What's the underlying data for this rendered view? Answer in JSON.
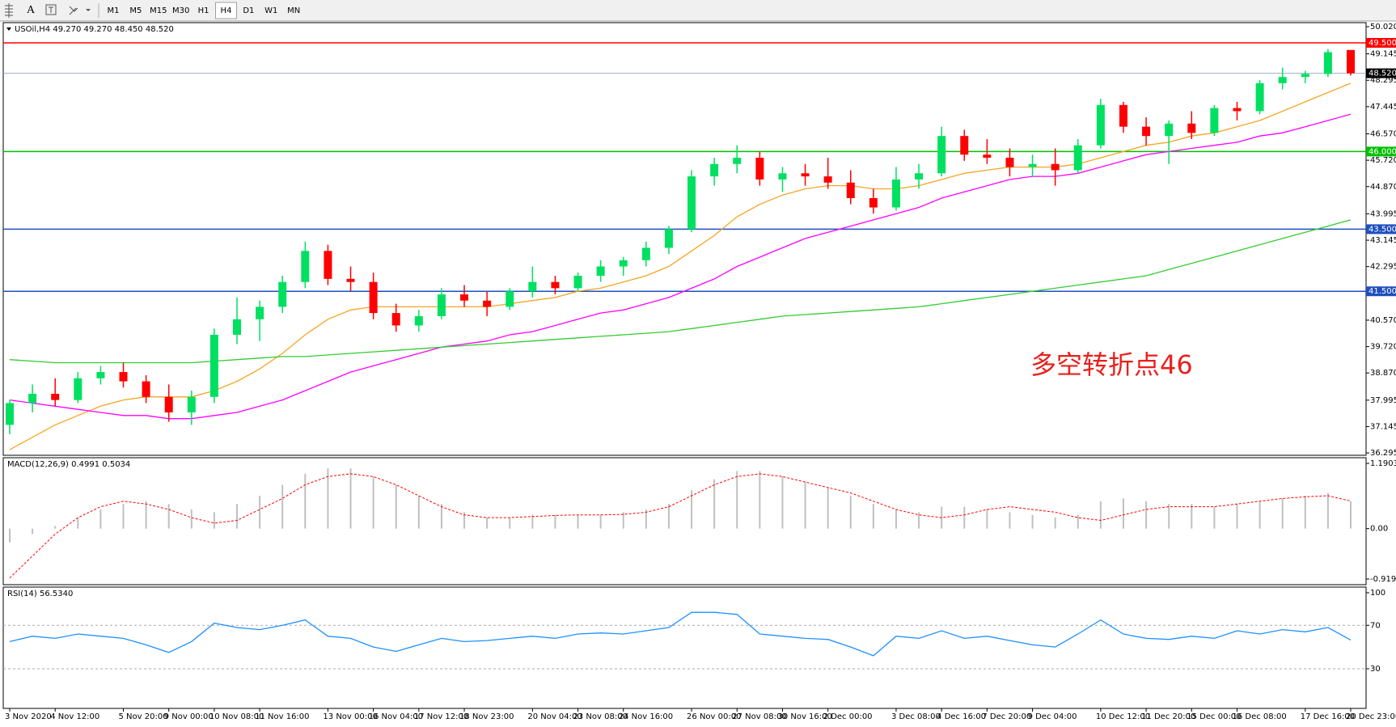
{
  "toolbar": {
    "timeframes": [
      "M1",
      "M5",
      "M15",
      "M30",
      "H1",
      "H4",
      "D1",
      "W1",
      "MN"
    ],
    "selected": "H4"
  },
  "chart_data": [
    {
      "type": "candlestick",
      "title": "USOil,H4 49.270 49.270 48.450 48.520",
      "annotation": "多空转折点46",
      "up_color": "#00e060",
      "down_color": "#ff0000",
      "categories": [
        "3 Nov 2020",
        null,
        "4 Nov 12:00",
        null,
        null,
        "5 Nov 20:00",
        null,
        "9 Nov 00:00",
        null,
        "10 Nov 08:00",
        null,
        "11 Nov 16:00",
        null,
        null,
        "13 Nov 00:00",
        null,
        "16 Nov 04:00",
        null,
        "17 Nov 12:00",
        null,
        "18 Nov 23:00",
        null,
        null,
        "20 Nov 04:00",
        null,
        "23 Nov 08:00",
        null,
        "24 Nov 16:00",
        null,
        null,
        "26 Nov 00:00",
        null,
        "27 Nov 08:00",
        null,
        "30 Nov 16:00",
        null,
        "2 Dec 00:00",
        null,
        null,
        "3 Dec 08:00",
        null,
        "4 Dec 16:00",
        null,
        "7 Dec 20:00",
        null,
        "9 Dec 04:00",
        null,
        null,
        "10 Dec 12:00",
        null,
        "11 Dec 20:00",
        null,
        "15 Dec 00:00",
        null,
        "16 Dec 08:00",
        null,
        null,
        "17 Dec 16:00",
        null,
        "20 Dec 23:00"
      ],
      "ohlc": [
        [
          37.2,
          38.0,
          36.9,
          37.9
        ],
        [
          37.9,
          38.5,
          37.6,
          38.2
        ],
        [
          38.2,
          38.7,
          37.8,
          38.0
        ],
        [
          38.0,
          38.9,
          37.9,
          38.7
        ],
        [
          38.7,
          39.1,
          38.5,
          38.9
        ],
        [
          38.9,
          39.2,
          38.4,
          38.6
        ],
        [
          38.6,
          38.8,
          37.9,
          38.1
        ],
        [
          38.1,
          38.5,
          37.3,
          37.6
        ],
        [
          37.6,
          38.3,
          37.2,
          38.1
        ],
        [
          38.1,
          40.3,
          37.9,
          40.1
        ],
        [
          40.1,
          41.3,
          39.8,
          40.6
        ],
        [
          40.6,
          41.2,
          39.9,
          41.0
        ],
        [
          41.0,
          42.0,
          40.8,
          41.8
        ],
        [
          41.8,
          43.1,
          41.6,
          42.8
        ],
        [
          42.8,
          43.0,
          41.7,
          41.9
        ],
        [
          41.9,
          42.3,
          41.5,
          41.8
        ],
        [
          41.8,
          42.1,
          40.6,
          40.8
        ],
        [
          40.8,
          41.1,
          40.2,
          40.4
        ],
        [
          40.4,
          40.9,
          40.2,
          40.7
        ],
        [
          40.7,
          41.6,
          40.6,
          41.4
        ],
        [
          41.4,
          41.7,
          41.0,
          41.2
        ],
        [
          41.2,
          41.5,
          40.7,
          41.0
        ],
        [
          41.0,
          41.6,
          40.9,
          41.5
        ],
        [
          41.5,
          42.3,
          41.3,
          41.8
        ],
        [
          41.8,
          42.0,
          41.4,
          41.6
        ],
        [
          41.6,
          42.1,
          41.5,
          42.0
        ],
        [
          42.0,
          42.5,
          41.8,
          42.3
        ],
        [
          42.3,
          42.6,
          42.0,
          42.5
        ],
        [
          42.5,
          43.1,
          42.3,
          42.9
        ],
        [
          42.9,
          43.6,
          42.7,
          43.5
        ],
        [
          43.5,
          45.4,
          43.4,
          45.2
        ],
        [
          45.2,
          45.8,
          44.9,
          45.6
        ],
        [
          45.6,
          46.2,
          45.3,
          45.8
        ],
        [
          45.8,
          46.0,
          44.9,
          45.1
        ],
        [
          45.1,
          45.5,
          44.7,
          45.3
        ],
        [
          45.3,
          45.6,
          44.9,
          45.2
        ],
        [
          45.2,
          45.8,
          44.8,
          45.0
        ],
        [
          45.0,
          45.4,
          44.3,
          44.5
        ],
        [
          44.5,
          44.8,
          44.0,
          44.2
        ],
        [
          44.2,
          45.5,
          44.1,
          45.1
        ],
        [
          45.1,
          45.6,
          44.8,
          45.3
        ],
        [
          45.3,
          46.8,
          45.2,
          46.5
        ],
        [
          46.5,
          46.7,
          45.7,
          45.9
        ],
        [
          45.9,
          46.4,
          45.6,
          45.8
        ],
        [
          45.8,
          46.1,
          45.2,
          45.5
        ],
        [
          45.5,
          45.9,
          45.2,
          45.6
        ],
        [
          45.6,
          46.1,
          44.9,
          45.4
        ],
        [
          45.4,
          46.4,
          45.3,
          46.2
        ],
        [
          46.2,
          47.7,
          46.1,
          47.5
        ],
        [
          47.5,
          47.6,
          46.6,
          46.8
        ],
        [
          46.8,
          47.1,
          46.2,
          46.5
        ],
        [
          46.5,
          47.0,
          45.6,
          46.9
        ],
        [
          46.9,
          47.3,
          46.4,
          46.6
        ],
        [
          46.6,
          47.5,
          46.5,
          47.4
        ],
        [
          47.4,
          47.6,
          47.0,
          47.3
        ],
        [
          47.3,
          48.3,
          47.2,
          48.2
        ],
        [
          48.2,
          48.7,
          48.0,
          48.4
        ],
        [
          48.4,
          48.6,
          48.2,
          48.5
        ],
        [
          48.5,
          49.3,
          48.4,
          49.2
        ],
        [
          49.27,
          49.27,
          48.45,
          48.52
        ]
      ],
      "series": [
        {
          "color": "#f5a623",
          "values": [
            36.4,
            36.8,
            37.2,
            37.5,
            37.8,
            38.0,
            38.1,
            38.1,
            38.1,
            38.3,
            38.6,
            39.0,
            39.5,
            40.1,
            40.6,
            40.9,
            41.0,
            41.0,
            41.0,
            41.0,
            41.0,
            41.0,
            41.1,
            41.2,
            41.3,
            41.5,
            41.6,
            41.8,
            42.0,
            42.3,
            42.8,
            43.3,
            43.9,
            44.3,
            44.6,
            44.8,
            44.9,
            44.9,
            44.8,
            44.8,
            44.9,
            45.1,
            45.3,
            45.4,
            45.5,
            45.5,
            45.5,
            45.6,
            45.8,
            46.0,
            46.2,
            46.3,
            46.5,
            46.6,
            46.8,
            47.0,
            47.3,
            47.6,
            47.9,
            48.2
          ]
        },
        {
          "color": "#ff00ff",
          "values": [
            38.0,
            37.9,
            37.8,
            37.7,
            37.6,
            37.5,
            37.5,
            37.4,
            37.4,
            37.5,
            37.6,
            37.8,
            38.0,
            38.3,
            38.6,
            38.9,
            39.1,
            39.3,
            39.5,
            39.7,
            39.8,
            39.9,
            40.1,
            40.2,
            40.4,
            40.6,
            40.8,
            40.9,
            41.1,
            41.3,
            41.6,
            41.9,
            42.3,
            42.6,
            42.9,
            43.2,
            43.4,
            43.6,
            43.8,
            44.0,
            44.2,
            44.5,
            44.7,
            44.9,
            45.1,
            45.2,
            45.2,
            45.3,
            45.5,
            45.7,
            45.9,
            46.0,
            46.1,
            46.2,
            46.3,
            46.5,
            46.6,
            46.8,
            47.0,
            47.2
          ]
        },
        {
          "color": "#33cc33",
          "values": [
            39.3,
            39.25,
            39.2,
            39.2,
            39.2,
            39.2,
            39.2,
            39.2,
            39.2,
            39.25,
            39.3,
            39.35,
            39.4,
            39.4,
            39.45,
            39.5,
            39.55,
            39.6,
            39.65,
            39.7,
            39.75,
            39.8,
            39.85,
            39.9,
            39.95,
            40.0,
            40.05,
            40.1,
            40.15,
            40.2,
            40.3,
            40.4,
            40.5,
            40.6,
            40.7,
            40.75,
            40.8,
            40.85,
            40.9,
            40.95,
            41.0,
            41.1,
            41.2,
            41.3,
            41.4,
            41.5,
            41.6,
            41.7,
            41.8,
            41.9,
            42.0,
            42.2,
            42.4,
            42.6,
            42.8,
            43.0,
            43.2,
            43.4,
            43.6,
            43.8
          ]
        }
      ],
      "levels": [
        {
          "value": 49.5,
          "label": "49.500",
          "color": "#ff0000",
          "label_color": "#ff0000"
        },
        {
          "value": 48.52,
          "label": "48.520",
          "color": "#9db0cc",
          "label_color": "#000000"
        },
        {
          "value": 46.0,
          "label": "46.000",
          "color": "#00c000",
          "label_color": "#00c000"
        },
        {
          "value": 43.5,
          "label": "43.500",
          "color": "#1f4fbf",
          "label_color": "#1f4fbf"
        },
        {
          "value": 41.5,
          "label": "41.500",
          "color": "#1f4fbf",
          "label_color": "#1f4fbf"
        }
      ],
      "ylim": [
        36.22,
        50.15
      ],
      "yticks": [
        {
          "value": 50.02,
          "label": "50.020"
        },
        {
          "value": 49.145,
          "label": "49.145"
        },
        {
          "value": 48.295,
          "label": "48.295"
        },
        {
          "value": 47.445,
          "label": "47.445"
        },
        {
          "value": 46.57,
          "label": "46.570"
        },
        {
          "value": 45.72,
          "label": "45.720"
        },
        {
          "value": 44.87,
          "label": "44.870"
        },
        {
          "value": 43.995,
          "label": "43.995"
        },
        {
          "value": 43.145,
          "label": "43.145"
        },
        {
          "value": 42.295,
          "label": "42.295"
        },
        {
          "value": 40.57,
          "label": "40.570"
        },
        {
          "value": 39.72,
          "label": "39.720"
        },
        {
          "value": 38.87,
          "label": "38.870"
        },
        {
          "value": 37.995,
          "label": "37.995"
        },
        {
          "value": 37.145,
          "label": "37.145"
        },
        {
          "value": 36.295,
          "label": "36.295"
        }
      ]
    },
    {
      "type": "macd",
      "title": "MACD(12,26,9) 0.4991 0.5034",
      "series": [
        {
          "style": "histogram",
          "color": "#c0c0c0",
          "values": [
            -0.25,
            -0.1,
            0.05,
            0.2,
            0.35,
            0.45,
            0.5,
            0.45,
            0.35,
            0.3,
            0.45,
            0.6,
            0.8,
            1.0,
            1.1,
            1.1,
            0.95,
            0.8,
            0.6,
            0.45,
            0.3,
            0.2,
            0.2,
            0.25,
            0.25,
            0.25,
            0.25,
            0.3,
            0.35,
            0.45,
            0.7,
            0.9,
            1.05,
            1.05,
            0.95,
            0.85,
            0.75,
            0.6,
            0.45,
            0.35,
            0.3,
            0.4,
            0.4,
            0.35,
            0.3,
            0.25,
            0.2,
            0.25,
            0.5,
            0.55,
            0.5,
            0.45,
            0.45,
            0.4,
            0.45,
            0.5,
            0.55,
            0.6,
            0.65,
            0.4991
          ]
        },
        {
          "style": "dotted",
          "color": "#ff0000",
          "values": [
            -0.9,
            -0.5,
            -0.1,
            0.2,
            0.4,
            0.5,
            0.45,
            0.35,
            0.2,
            0.1,
            0.15,
            0.35,
            0.55,
            0.8,
            0.95,
            1.0,
            0.95,
            0.8,
            0.6,
            0.4,
            0.25,
            0.2,
            0.2,
            0.22,
            0.24,
            0.25,
            0.25,
            0.26,
            0.3,
            0.4,
            0.6,
            0.8,
            0.95,
            1.0,
            0.95,
            0.85,
            0.75,
            0.65,
            0.5,
            0.35,
            0.25,
            0.2,
            0.25,
            0.35,
            0.4,
            0.35,
            0.3,
            0.2,
            0.15,
            0.25,
            0.35,
            0.4,
            0.4,
            0.4,
            0.45,
            0.5,
            0.55,
            0.58,
            0.6,
            0.5034
          ]
        }
      ],
      "ylim": [
        -1.023,
        1.294
      ],
      "yticks": [
        1.1903,
        {
          "value": 0,
          "label": "0.00"
        },
        -0.9196
      ]
    },
    {
      "type": "rsi",
      "title": "RSI(14) 56.5340",
      "series": [
        {
          "style": "line",
          "color": "#1e90ff",
          "values": [
            55,
            60,
            58,
            62,
            60,
            58,
            52,
            45,
            55,
            72,
            68,
            66,
            70,
            75,
            60,
            58,
            50,
            46,
            52,
            58,
            55,
            56,
            58,
            60,
            58,
            62,
            63,
            62,
            65,
            68,
            82,
            82,
            80,
            62,
            60,
            58,
            57,
            50,
            42,
            60,
            58,
            65,
            58,
            60,
            56,
            52,
            50,
            62,
            75,
            62,
            58,
            57,
            60,
            58,
            65,
            62,
            66,
            64,
            68,
            56.534
          ]
        }
      ],
      "dashed_levels": [
        70,
        30
      ],
      "ylim": [
        -6.5,
        105.2
      ],
      "yticks": [
        100,
        70,
        30
      ]
    }
  ]
}
